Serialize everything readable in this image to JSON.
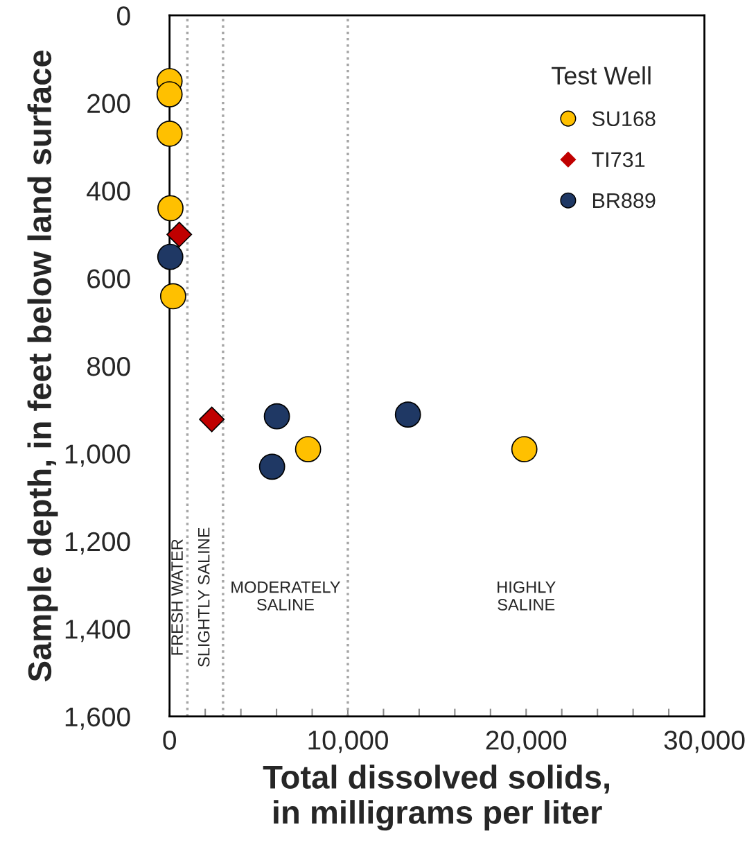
{
  "chart_data": {
    "type": "scatter",
    "xlabel": "Total dissolved solids,\nin milligrams per liter",
    "ylabel": "Sample depth, in feet below land surface",
    "legend_title": "Test Well",
    "legend": "top right",
    "grid": false,
    "xlim": [
      0,
      30000
    ],
    "ylim": [
      1600,
      0
    ],
    "xticks": [
      {
        "value": 0,
        "label": "0"
      },
      {
        "value": 2000,
        "label": null
      },
      {
        "value": 4000,
        "label": null
      },
      {
        "value": 6000,
        "label": null
      },
      {
        "value": 8000,
        "label": null
      },
      {
        "value": 10000,
        "label": "10,000"
      },
      {
        "value": 12000,
        "label": null
      },
      {
        "value": 14000,
        "label": null
      },
      {
        "value": 16000,
        "label": null
      },
      {
        "value": 18000,
        "label": null
      },
      {
        "value": 20000,
        "label": "20,000"
      },
      {
        "value": 22000,
        "label": null
      },
      {
        "value": 24000,
        "label": null
      },
      {
        "value": 26000,
        "label": null
      },
      {
        "value": 28000,
        "label": null
      },
      {
        "value": 30000,
        "label": "30,000"
      }
    ],
    "yticks": [
      0,
      {
        "value": 200,
        "label": "200"
      },
      {
        "value": 400,
        "label": "400"
      },
      {
        "value": 600,
        "label": "600"
      },
      {
        "value": 800,
        "label": "800"
      },
      {
        "value": 1000,
        "label": "1,000"
      },
      {
        "value": 1200,
        "label": "1,200"
      },
      {
        "value": 1400,
        "label": "1,400"
      },
      {
        "value": 1600,
        "label": "1,600"
      }
    ],
    "series": [
      {
        "name": "SU168",
        "color": "#ffc000",
        "marker": "circle",
        "x": [
          0,
          0,
          0,
          50,
          200,
          7770,
          19900
        ],
        "values": [
          150,
          180,
          270,
          440,
          641,
          990,
          990
        ]
      },
      {
        "name": "TI731",
        "color": "#c00000",
        "marker": "diamond",
        "x": [
          544,
          2370
        ],
        "values": [
          500,
          922
        ]
      },
      {
        "name": "BR889",
        "color": "#1f3864",
        "marker": "circle",
        "x": [
          40,
          6020,
          13370,
          5750
        ],
        "values": [
          551,
          915,
          911,
          1030
        ]
      }
    ],
    "ref_lines": [
      {
        "axis": "x",
        "value": 1000,
        "color": "#a6a6a6",
        "line_style": "dotted"
      },
      {
        "axis": "x",
        "value": 3000,
        "color": "#a6a6a6",
        "line_style": "dotted"
      },
      {
        "axis": "x",
        "value": 10000,
        "color": "#a6a6a6",
        "line_style": "dotted"
      }
    ],
    "annotations": [
      "FRESH WATER",
      "SLIGHTLY SALINE",
      "MODERATELY\nSALINE",
      "HIGHLY\nSALINE"
    ]
  }
}
